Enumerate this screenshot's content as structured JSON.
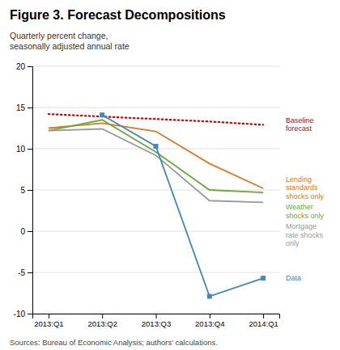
{
  "chart_data": {
    "type": "line",
    "title": "Figure 3. Forecast Decompositions",
    "subtitle": "Quarterly percent change,\nseasonally adjusted annual rate",
    "annotations": [
      "Sources: Bureau of Economic Analysis; authors' calculations."
    ],
    "categories": [
      "2013:Q1",
      "2013:Q2",
      "2013:Q3",
      "2013:Q4",
      "2014:Q1"
    ],
    "ylim": [
      -10,
      20
    ],
    "yticks": [
      -10,
      -5,
      0,
      5,
      10,
      15,
      20
    ],
    "grid": true,
    "series": [
      {
        "name": "Baseline\nforecast",
        "color": "#cc0000",
        "line_style": "dotted",
        "values": [
          14.2,
          13.9,
          13.6,
          13.3,
          12.9
        ]
      },
      {
        "name": "Lending\nstandards\nshocks only",
        "color": "#e07820",
        "line_style": "solid",
        "values": [
          12.5,
          13.1,
          12.1,
          8.2,
          5.2
        ]
      },
      {
        "name": "Weather\nshocks only",
        "color": "#6aaa3c",
        "line_style": "solid",
        "values": [
          12.2,
          13.5,
          9.6,
          5.0,
          4.7
        ]
      },
      {
        "name": "Mortgage\nrate shocks\nonly",
        "color": "#999999",
        "line_style": "solid",
        "values": [
          12.2,
          12.4,
          9.2,
          3.7,
          3.5
        ]
      },
      {
        "name": "Data",
        "color": "#4488bb",
        "line_style": "solid",
        "marker": "square",
        "values": [
          null,
          14.1,
          10.3,
          -7.9,
          -5.7
        ]
      }
    ]
  }
}
